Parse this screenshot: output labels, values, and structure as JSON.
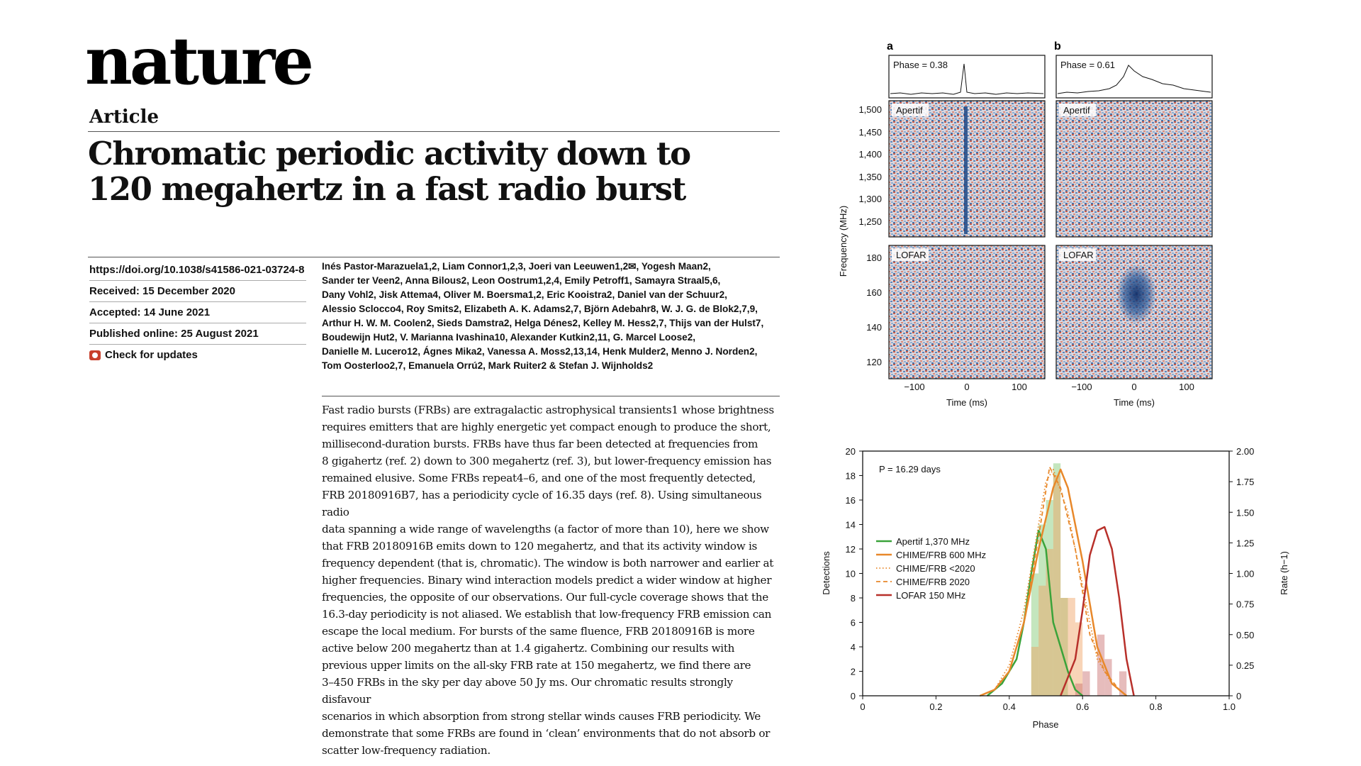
{
  "journal": {
    "logo": "nature"
  },
  "article": {
    "type_label": "Article",
    "title_line1": "Chromatic periodic activity down to",
    "title_line2": "120 megahertz in a fast radio burst",
    "doi": "https://doi.org/10.1038/s41586-021-03724-8",
    "received": "Received: 15 December 2020",
    "accepted": "Accepted: 14 June 2021",
    "published": "Published online: 25 August 2021",
    "check_updates": "Check for updates",
    "authors": [
      "Inés Pastor-Marazuela1,2, Liam Connor1,2,3, Joeri van Leeuwen1,2✉, Yogesh Maan2,",
      "Sander ter Veen2, Anna Bilous2, Leon Oostrum1,2,4, Emily Petroff1, Samayra Straal5,6,",
      "Dany Vohl2, Jisk Attema4, Oliver M. Boersma1,2, Eric Kooistra2, Daniel van der Schuur2,",
      "Alessio Sclocco4, Roy Smits2, Elizabeth A. K. Adams2,7, Björn Adebahr8, W. J. G. de Blok2,7,9,",
      "Arthur H. W. M. Coolen2, Sieds Damstra2, Helga Dénes2, Kelley M. Hess2,7, Thijs van der Hulst7,",
      "Boudewijn Hut2, V. Marianna Ivashina10, Alexander Kutkin2,11, G. Marcel Loose2,",
      "Danielle M. Lucero12, Ágnes Mika2, Vanessa A. Moss2,13,14, Henk Mulder2, Menno J. Norden2,",
      "Tom Oosterloo2,7, Emanuela Orrú2, Mark Ruiter2 & Stefan J. Wijnholds2"
    ],
    "abstract_lines": [
      "Fast radio bursts (FRBs) are extragalactic astrophysical transients1 whose brightness",
      "requires emitters that are highly energetic yet compact enough to produce the short,",
      "millisecond-duration bursts. FRBs have thus far been detected at frequencies from",
      "8 gigahertz (ref. 2) down to 300 megahertz (ref. 3), but lower-frequency emission has",
      "remained elusive. Some FRBs repeat4–6, and one of the most frequently detected,",
      "FRB 20180916B7, has a periodicity cycle of 16.35 days (ref. 8). Using simultaneous radio",
      "data spanning a wide range of wavelengths (a factor of more than 10), here we show",
      "that FRB 20180916B emits down to 120 megahertz, and that its activity window is",
      "frequency dependent (that is, chromatic). The window is both narrower and earlier at",
      "higher frequencies. Binary wind interaction models predict a wider window at higher",
      "frequencies, the opposite of our observations. Our full-cycle coverage shows that the",
      "16.3-day periodicity is not aliased. We establish that low-frequency FRB emission can",
      "escape the local medium. For bursts of the same fluence, FRB 20180916B is more",
      "active below 200 megahertz than at 1.4 gigahertz. Combining our results with",
      "previous upper limits on the all-sky FRB rate at 150 megahertz, we find there are",
      "3–450 FRBs in the sky per day above 50 Jy ms. Our chromatic results strongly disfavour",
      "scenarios in which absorption from strong stellar winds causes FRB periodicity. We",
      "demonstrate that some FRBs are found in ‘clean’ environments that do not absorb or",
      "scatter low-frequency radiation."
    ]
  },
  "figure_top": {
    "panel_a_label": "a",
    "panel_b_label": "b",
    "panel_a_phase": "Phase = 0.38",
    "panel_b_phase": "Phase = 0.61",
    "apertif_label": "Apertif",
    "lofar_label": "LOFAR",
    "ylabel": "Frequency (MHz)",
    "xlabel": "Time (ms)",
    "apertif_ticks": [
      "1,500",
      "1,450",
      "1,400",
      "1,350",
      "1,300",
      "1,250"
    ],
    "lofar_ticks": [
      "180",
      "160",
      "140",
      "120"
    ],
    "x_ticks": [
      "−100",
      "0",
      "100"
    ]
  },
  "chart_data": {
    "type": "line",
    "annotation": "P = 16.29 days",
    "xlabel": "Phase",
    "ylabel": "Detections",
    "ylabel_right": "Rate (h−1)",
    "xlim": [
      0,
      1.0
    ],
    "ylim": [
      0,
      20
    ],
    "ylim_right": [
      0,
      2.0
    ],
    "x_ticks": [
      "0",
      "0.2",
      "0.4",
      "0.6",
      "0.8",
      "1.0"
    ],
    "y_ticks": [
      "0",
      "2",
      "4",
      "6",
      "8",
      "10",
      "12",
      "14",
      "16",
      "18",
      "20"
    ],
    "y_ticks_right": [
      "0",
      "0.25",
      "0.50",
      "0.75",
      "1.00",
      "1.25",
      "1.50",
      "1.75",
      "2.00"
    ],
    "legend_position": "center-left",
    "histograms": [
      {
        "name": "Apertif",
        "color": "#7cc86f",
        "bins": [
          0.46,
          0.48,
          0.5,
          0.52,
          0.54
        ],
        "width": 0.02,
        "values": [
          10,
          14,
          16,
          19,
          8
        ]
      },
      {
        "name": "CHIME/FRB",
        "color": "#f0a060",
        "bins": [
          0.46,
          0.48,
          0.5,
          0.52,
          0.54,
          0.56,
          0.58
        ],
        "width": 0.02,
        "values": [
          4,
          9,
          12,
          18,
          8,
          8,
          6
        ]
      },
      {
        "name": "LOFAR",
        "color": "#c86a6a",
        "bins": [
          0.58,
          0.6,
          0.64,
          0.66,
          0.7
        ],
        "width": 0.02,
        "values": [
          1,
          2,
          5,
          3,
          2
        ]
      }
    ],
    "series": [
      {
        "name": "Apertif 1,370 MHz",
        "color": "#3aa33a",
        "style": "solid",
        "width": 2.5,
        "x": [
          0.34,
          0.38,
          0.42,
          0.44,
          0.46,
          0.48,
          0.5,
          0.52,
          0.54,
          0.56,
          0.58,
          0.6
        ],
        "y": [
          0,
          1,
          3,
          6,
          10,
          13.5,
          12,
          6,
          4,
          2,
          0.5,
          0
        ]
      },
      {
        "name": "CHIME/FRB 600 MHz",
        "color": "#e8882a",
        "style": "solid",
        "width": 2.5,
        "x": [
          0.32,
          0.36,
          0.4,
          0.44,
          0.48,
          0.52,
          0.54,
          0.56,
          0.6,
          0.64,
          0.68,
          0.72
        ],
        "y": [
          0,
          0.5,
          2,
          6,
          12,
          17,
          18.5,
          17,
          11,
          4,
          1,
          0
        ]
      },
      {
        "name": "CHIME/FRB <2020",
        "color": "#e8882a",
        "style": "dotted",
        "width": 1.8,
        "x": [
          0.32,
          0.36,
          0.4,
          0.44,
          0.48,
          0.5,
          0.52,
          0.56,
          0.6,
          0.64,
          0.68,
          0.72
        ],
        "y": [
          0,
          0.5,
          2.5,
          7,
          14,
          17.5,
          18.5,
          15,
          9,
          3,
          1,
          0
        ]
      },
      {
        "name": "CHIME/FRB 2020",
        "color": "#e8882a",
        "style": "dashed",
        "width": 1.8,
        "x": [
          0.32,
          0.36,
          0.4,
          0.44,
          0.48,
          0.51,
          0.54,
          0.58,
          0.62,
          0.66,
          0.7,
          0.72
        ],
        "y": [
          0,
          0.5,
          2,
          6,
          13,
          18.7,
          17,
          12,
          5,
          2,
          0.5,
          0
        ]
      },
      {
        "name": "LOFAR 150 MHz",
        "color": "#b8302a",
        "style": "solid",
        "width": 2.5,
        "x": [
          0.54,
          0.58,
          0.6,
          0.62,
          0.64,
          0.66,
          0.68,
          0.7,
          0.72,
          0.74
        ],
        "y": [
          0,
          3,
          7,
          11.5,
          13.5,
          13.8,
          12,
          8,
          3,
          0
        ]
      }
    ]
  }
}
